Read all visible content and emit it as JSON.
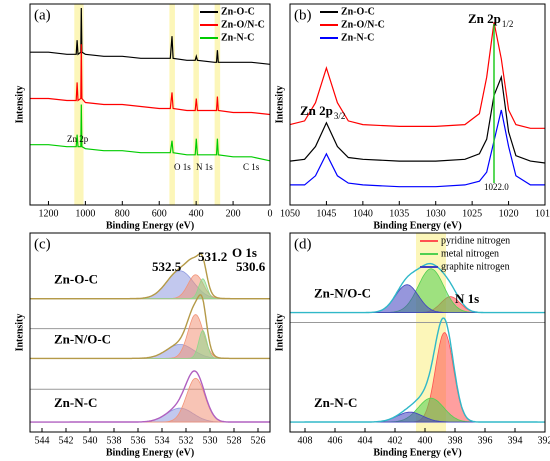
{
  "chart_data": [
    {
      "type": "line",
      "title": "(a)",
      "xlabel": "Binding Energy (eV)",
      "ylabel": "Intensity",
      "xlim": [
        1300,
        0
      ],
      "ylim": [
        0,
        100
      ],
      "xticks": [
        1200,
        1000,
        800,
        600,
        400,
        200,
        0
      ],
      "highlights": [
        [
          1060,
          1010
        ],
        [
          545,
          515
        ],
        [
          415,
          385
        ],
        [
          300,
          270
        ]
      ],
      "annotations": [
        {
          "text": "Zn 2p"
        },
        {
          "text": "O 1s"
        },
        {
          "text": "N 1s"
        },
        {
          "text": "C 1s"
        }
      ],
      "legend": "upper right",
      "x": [
        1300,
        1200,
        1100,
        1050,
        1045,
        1040,
        1025,
        1022,
        1019,
        1000,
        900,
        800,
        700,
        600,
        540,
        531,
        525,
        450,
        405,
        399,
        393,
        300,
        290,
        285,
        280,
        200,
        100,
        0
      ],
      "series": [
        {
          "name": "Zn-O-C",
          "color": "#000000",
          "values": [
            76,
            76,
            75,
            75,
            82,
            75,
            76,
            98,
            76,
            75,
            74,
            74,
            73,
            73,
            73,
            84,
            73,
            72,
            72,
            74,
            72,
            71,
            71,
            77,
            71,
            71,
            71,
            70
          ]
        },
        {
          "name": "Zn-O/N-C",
          "color": "#ff0000",
          "values": [
            53,
            53,
            52,
            52,
            61,
            52,
            53,
            80,
            53,
            51,
            50,
            50,
            49,
            48,
            48,
            56,
            48,
            47,
            47,
            53,
            47,
            47,
            47,
            54,
            47,
            46,
            46,
            45
          ]
        },
        {
          "name": "Zn-N-C",
          "color": "#00cc00",
          "values": [
            30,
            30,
            29,
            29,
            35,
            29,
            29,
            50,
            29,
            28,
            27,
            27,
            26,
            26,
            26,
            32,
            26,
            25,
            25,
            33,
            25,
            25,
            25,
            33,
            25,
            24,
            24,
            22
          ]
        }
      ]
    },
    {
      "type": "line",
      "title": "(b)",
      "xlabel": "Binding Energy (eV)",
      "ylabel": "Intensity",
      "xlim": [
        1050,
        1015
      ],
      "ylim": [
        0,
        110
      ],
      "xticks": [
        1050,
        1045,
        1040,
        1035,
        1030,
        1025,
        1020,
        1015
      ],
      "annotations": [
        {
          "text": "Zn 2p",
          "sub": "3/2"
        },
        {
          "text": "Zn 2p",
          "sub": "1/2"
        },
        {
          "text": "1022.0"
        }
      ],
      "marker_line": {
        "x": 1022,
        "color": "#22cc22"
      },
      "legend": "upper left",
      "x": [
        1050,
        1048,
        1046.5,
        1045,
        1043.5,
        1042,
        1040,
        1035,
        1030,
        1026,
        1024,
        1023,
        1022,
        1021,
        1020,
        1019,
        1017,
        1015
      ],
      "series": [
        {
          "name": "Zn-O-C",
          "color": "#000000",
          "values": [
            24,
            25,
            32,
            45,
            32,
            26,
            25,
            24,
            24,
            25,
            28,
            36,
            60,
            70,
            40,
            27,
            24,
            23
          ]
        },
        {
          "name": "Zn-O/N-C",
          "color": "#ff0000",
          "values": [
            44,
            46,
            56,
            75,
            56,
            46,
            44,
            43,
            43,
            44,
            50,
            70,
            100,
            80,
            52,
            44,
            42,
            42
          ]
        },
        {
          "name": "Zn-N-C",
          "color": "#0000ff",
          "values": [
            11,
            11,
            16,
            28,
            16,
            12,
            11,
            10,
            10,
            11,
            13,
            18,
            35,
            52,
            32,
            16,
            11,
            11
          ]
        }
      ]
    },
    {
      "type": "area",
      "title": "(c)",
      "xlabel": "Binding Energy (eV)",
      "ylabel": "Intensity",
      "xlim": [
        545,
        525
      ],
      "ylim": [
        0,
        100
      ],
      "xticks": [
        544,
        542,
        540,
        538,
        536,
        534,
        532,
        530,
        528,
        526
      ],
      "annotations": [
        {
          "text": "531.2"
        },
        {
          "text": "532.5"
        },
        {
          "text": "O 1s"
        },
        {
          "text": "530.6"
        }
      ],
      "series": [
        {
          "color": "#8f9ae0"
        },
        {
          "color": "#f29478"
        },
        {
          "color": "#8fd88a"
        }
      ],
      "stacks": [
        {
          "label": "Zn-O-C",
          "baseline": 67,
          "line_color": "#b59a48",
          "peaks": [
            {
              "center": 532.5,
              "height": 14,
              "fwhm": 2.6
            },
            {
              "center": 531.2,
              "height": 12,
              "fwhm": 1.5
            },
            {
              "center": 530.6,
              "height": 10,
              "fwhm": 0.8
            }
          ]
        },
        {
          "label": "Zn-N/O-C",
          "baseline": 37,
          "line_color": "#b59a48",
          "peaks": [
            {
              "center": 532.5,
              "height": 7,
              "fwhm": 2.6
            },
            {
              "center": 531.2,
              "height": 22,
              "fwhm": 1.5
            },
            {
              "center": 530.6,
              "height": 14,
              "fwhm": 0.8
            }
          ]
        },
        {
          "label": "Zn-N-C",
          "baseline": 5,
          "line_color": "#b060c0",
          "peaks": [
            {
              "center": 532.5,
              "height": 7,
              "fwhm": 2.6
            },
            {
              "center": 531.2,
              "height": 22,
              "fwhm": 1.8
            }
          ]
        }
      ]
    },
    {
      "type": "area",
      "title": "(d)",
      "xlabel": "Binding Energy (eV)",
      "ylabel": "Intensity",
      "xlim": [
        409,
        392
      ],
      "ylim": [
        0,
        100
      ],
      "xticks": [
        408,
        406,
        404,
        402,
        400,
        398,
        396,
        394,
        392
      ],
      "highlights": [
        [
          400.6,
          398.6
        ]
      ],
      "annotations": [
        {
          "text": "N 1s"
        }
      ],
      "legend": "upper right",
      "series": [
        {
          "name": "pyridine nitrogen",
          "color": "#ff5050"
        },
        {
          "name": "metal nitrogen",
          "color": "#50d050"
        },
        {
          "name": "graphite nitrogen",
          "color": "#4040c0"
        }
      ],
      "stacks": [
        {
          "label": "Zn-N/O-C",
          "baseline": 60,
          "line_color": "#30b8c8",
          "peaks": [
            {
              "center": 398.3,
              "height": 8,
              "fwhm": 1.5
            },
            {
              "center": 399.6,
              "height": 22,
              "fwhm": 2.0
            },
            {
              "center": 401.2,
              "height": 14,
              "fwhm": 1.8
            }
          ]
        },
        {
          "label": "Zn-N-C",
          "baseline": 5,
          "line_color": "#30b8c8",
          "peaks": [
            {
              "center": 398.7,
              "height": 45,
              "fwhm": 1.4
            },
            {
              "center": 399.6,
              "height": 12,
              "fwhm": 2.0
            },
            {
              "center": 401.0,
              "height": 5,
              "fwhm": 2.0
            }
          ]
        }
      ]
    }
  ]
}
